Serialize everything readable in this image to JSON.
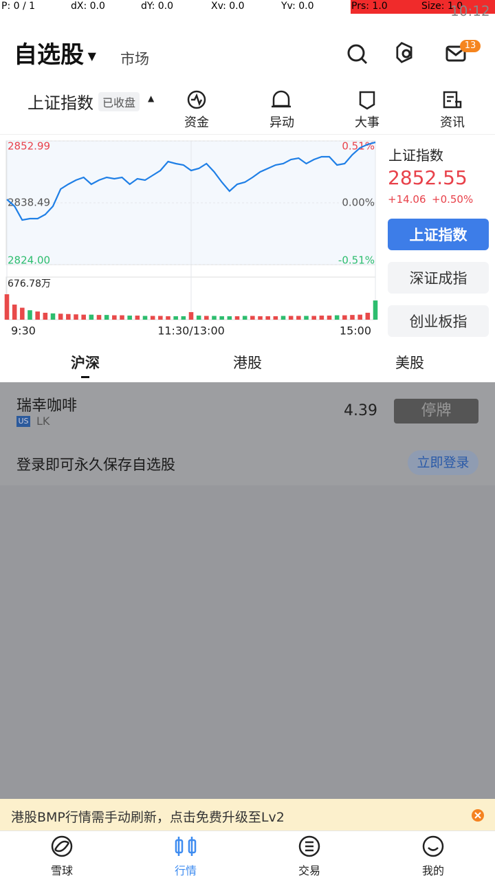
{
  "status_bar": {
    "pointer": "P: 0 / 1",
    "dx": "dX: 0.0",
    "dy": "dY: 0.0",
    "xv": "Xv: 0.0",
    "yv": "Yv: 0.0",
    "prs": "Prs: 1.0",
    "size": "Size: 1.0",
    "time": "10:12"
  },
  "header": {
    "title": "自选股",
    "market": "市场",
    "badge": "13"
  },
  "index_bar": {
    "name": "上证指数",
    "status": "已收盘",
    "tabs": [
      "资金",
      "异动",
      "大事",
      "资讯"
    ]
  },
  "chart_data": {
    "type": "line",
    "x": [
      0,
      5,
      10,
      15,
      20,
      25,
      30,
      35,
      40,
      45,
      50,
      55,
      60,
      65,
      70,
      75,
      80,
      85,
      90,
      95,
      100,
      105,
      110,
      115,
      120,
      125,
      130,
      135,
      140,
      145,
      150,
      155,
      160,
      165,
      170,
      175,
      180,
      185,
      190,
      195,
      200,
      205,
      210,
      215,
      220,
      225,
      230,
      235,
      240
    ],
    "xlim": [
      0,
      240
    ],
    "xticks": [
      {
        "value": 0,
        "label": "9:30"
      },
      {
        "value": 120,
        "label": "11:30/13:00"
      },
      {
        "value": 240,
        "label": "15:00"
      }
    ],
    "ylim": [
      2824,
      2852.99
    ],
    "yticks": [
      2852.99,
      2838.49,
      {
        "value": 2824,
        "label": "2824.00"
      }
    ],
    "y2lim": [
      -0.51,
      0.51
    ],
    "y2ticks": [
      {
        "value": 0.51,
        "label": "0.51%"
      },
      {
        "value": 0,
        "label": "0.00%"
      },
      {
        "value": -0.51,
        "label": "-0.51%"
      }
    ],
    "series": [
      {
        "color": "#1f7fe6",
        "values": [
          2839.3,
          2837.69,
          2834.47,
          2834.79,
          2834.79,
          2835.76,
          2837.69,
          2841.72,
          2842.84,
          2843.81,
          2844.45,
          2842.84,
          2843.81,
          2844.45,
          2844.13,
          2844.45,
          2842.84,
          2844.13,
          2843.81,
          2844.94,
          2846.06,
          2848.16,
          2847.68,
          2847.35,
          2846.06,
          2846.55,
          2847.68,
          2845.74,
          2843.33,
          2841.23,
          2842.84,
          2843.33,
          2844.45,
          2845.74,
          2846.55,
          2847.35,
          2847.68,
          2848.64,
          2848.96,
          2847.68,
          2848.64,
          2849.29,
          2849.29,
          2847.35,
          2847.68,
          2849.77,
          2851.38,
          2852.18,
          2852.67
        ]
      }
    ],
    "volume": {
      "ylim": [
        0,
        676.78
      ],
      "yticks": [
        {
          "value": 676.78,
          "label": "676.78万"
        }
      ],
      "values": [
        404,
        240,
        190,
        150,
        130,
        110,
        100,
        95,
        90,
        85,
        80,
        80,
        75,
        75,
        70,
        70,
        65,
        65,
        60,
        60,
        60,
        55,
        55,
        55,
        120,
        65,
        60,
        60,
        55,
        55,
        55,
        60,
        60,
        55,
        55,
        55,
        60,
        60,
        60,
        60,
        60,
        65,
        65,
        70,
        70,
        75,
        80,
        110,
        305
      ],
      "colors": [
        "#e84a4a",
        "#e84a4a",
        "#e84a4a",
        "#2dbd6e",
        "#e84a4a",
        "#e84a4a",
        "#2dbd6e",
        "#e84a4a",
        "#e84a4a",
        "#e84a4a",
        "#e84a4a",
        "#2dbd6e",
        "#e84a4a",
        "#2dbd6e",
        "#e84a4a",
        "#e84a4a",
        "#2dbd6e",
        "#e84a4a",
        "#2dbd6e",
        "#e84a4a",
        "#e84a4a",
        "#e84a4a",
        "#2dbd6e",
        "#2dbd6e",
        "#e84a4a",
        "#2dbd6e",
        "#e84a4a",
        "#2dbd6e",
        "#2dbd6e",
        "#2dbd6e",
        "#e84a4a",
        "#2dbd6e",
        "#e84a4a",
        "#e84a4a",
        "#e84a4a",
        "#e84a4a",
        "#2dbd6e",
        "#e84a4a",
        "#e84a4a",
        "#2dbd6e",
        "#e84a4a",
        "#e84a4a",
        "#e84a4a",
        "#2dbd6e",
        "#e84a4a",
        "#e84a4a",
        "#e84a4a",
        "#e84a4a",
        "#2dbd6e"
      ]
    }
  },
  "quote": {
    "name": "上证指数",
    "price": "2852.55",
    "change": "+14.06",
    "change_pct": "+0.50%",
    "indices": [
      "上证指数",
      "深证成指",
      "创业板指"
    ]
  },
  "market_tabs": [
    "沪深",
    "港股",
    "美股"
  ],
  "watchlist": {
    "rows": [
      {
        "name": "瑞幸咖啡",
        "market": "US",
        "code": "LK",
        "price": "4.39",
        "status": "停牌"
      }
    ],
    "login_prompt": "登录即可永久保存自选股",
    "login_button": "立即登录"
  },
  "banner": "港股BMP行情需手动刷新，点击免费升级至Lv2",
  "nav": [
    "雪球",
    "行情",
    "交易",
    "我的"
  ]
}
